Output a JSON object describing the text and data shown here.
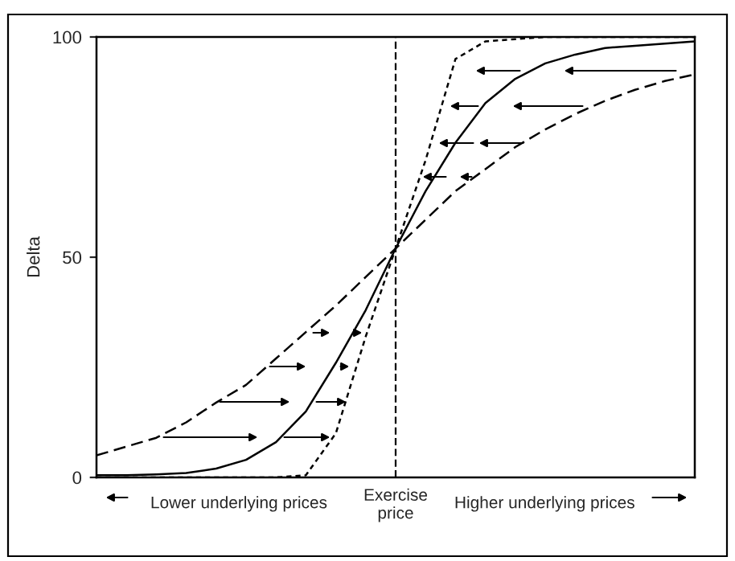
{
  "chart_data": {
    "type": "line",
    "ylabel": "Delta",
    "categories": [
      null,
      null,
      null,
      null,
      null,
      null,
      null,
      null,
      null,
      null,
      null,
      null,
      null,
      null,
      null,
      null,
      null,
      null,
      null,
      null,
      null
    ],
    "series": [
      {
        "color": "#000000",
        "line_style": "dashed",
        "values": [
          5,
          7,
          9,
          12.5,
          17,
          21,
          27,
          33,
          39,
          45.5,
          52,
          58.5,
          65,
          70,
          75,
          79,
          82.5,
          85.5,
          88,
          90,
          91.5
        ]
      },
      {
        "color": "#000000",
        "line_style": "solid",
        "values": [
          0.5,
          0.5,
          0.7,
          1,
          2,
          4,
          8,
          15,
          26,
          38,
          52,
          65,
          76,
          85,
          90.5,
          94,
          96,
          97.5,
          98,
          98.5,
          99
        ]
      },
      {
        "color": "#000000",
        "line_style": "dotted",
        "values": [
          0,
          0,
          0,
          0,
          0,
          0,
          0,
          0.5,
          10,
          32,
          52,
          72,
          95,
          99,
          99.5,
          100,
          100,
          100,
          100,
          100,
          100
        ]
      }
    ],
    "ylim": [
      0,
      100
    ],
    "yticks": [
      0,
      50,
      100
    ],
    "grid": false,
    "legend": false,
    "marker": "none",
    "annotations": [
      "Lower underlying prices",
      "Exercise\nprice",
      "Higher underlying prices"
    ]
  }
}
